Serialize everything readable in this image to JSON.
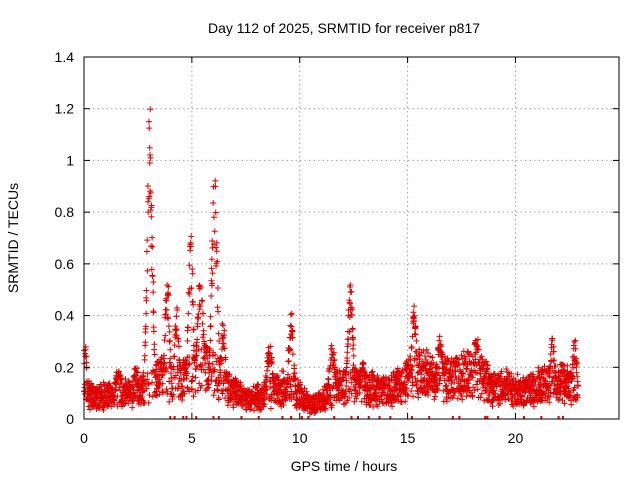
{
  "chart_data": {
    "type": "scatter",
    "title": "Day 112 of 2025, SRMTID for receiver p817",
    "xlabel": "GPS time / hours",
    "ylabel": "SRMTID / TECUs",
    "xlim": [
      0,
      24.8
    ],
    "ylim": [
      0,
      1.4
    ],
    "xticks": [
      0,
      5,
      10,
      15,
      20
    ],
    "xtick_labels": [
      "0",
      "5",
      "10",
      "15",
      "20"
    ],
    "yticks": [
      0,
      0.2,
      0.4,
      0.6,
      0.8,
      1.0,
      1.2,
      1.4
    ],
    "ytick_labels": [
      "0",
      "0.2",
      "0.4",
      "0.6",
      "0.8",
      "1",
      "1.2",
      "1.4"
    ],
    "grid": true,
    "marker": "+",
    "color": "#e00000",
    "background_level": [
      [
        0.0,
        0.12
      ],
      [
        0.5,
        0.1
      ],
      [
        1.0,
        0.1
      ],
      [
        1.5,
        0.11
      ],
      [
        2.0,
        0.11
      ],
      [
        2.5,
        0.12
      ],
      [
        3.0,
        0.14
      ],
      [
        3.5,
        0.17
      ],
      [
        4.0,
        0.17
      ],
      [
        4.5,
        0.16
      ],
      [
        5.0,
        0.2
      ],
      [
        5.5,
        0.24
      ],
      [
        6.0,
        0.2
      ],
      [
        6.5,
        0.15
      ],
      [
        7.0,
        0.12
      ],
      [
        7.5,
        0.08
      ],
      [
        8.0,
        0.09
      ],
      [
        8.5,
        0.11
      ],
      [
        9.0,
        0.13
      ],
      [
        9.5,
        0.14
      ],
      [
        10.0,
        0.1
      ],
      [
        10.5,
        0.06
      ],
      [
        11.0,
        0.08
      ],
      [
        11.5,
        0.12
      ],
      [
        12.0,
        0.14
      ],
      [
        12.5,
        0.15
      ],
      [
        13.0,
        0.13
      ],
      [
        13.5,
        0.13
      ],
      [
        14.0,
        0.12
      ],
      [
        14.5,
        0.14
      ],
      [
        15.0,
        0.17
      ],
      [
        15.5,
        0.2
      ],
      [
        16.0,
        0.19
      ],
      [
        16.5,
        0.17
      ],
      [
        17.0,
        0.17
      ],
      [
        17.5,
        0.18
      ],
      [
        18.0,
        0.2
      ],
      [
        18.5,
        0.18
      ],
      [
        19.0,
        0.13
      ],
      [
        19.5,
        0.14
      ],
      [
        20.0,
        0.12
      ],
      [
        20.5,
        0.12
      ],
      [
        21.0,
        0.14
      ],
      [
        21.5,
        0.15
      ],
      [
        22.0,
        0.16
      ],
      [
        22.5,
        0.14
      ],
      [
        22.9,
        0.13
      ]
    ],
    "peaks": [
      {
        "t": 0.05,
        "value": 0.3,
        "width": 0.08
      },
      {
        "t": 1.6,
        "value": 0.19,
        "width": 0.15
      },
      {
        "t": 2.4,
        "value": 0.2,
        "width": 0.15
      },
      {
        "t": 3.05,
        "value": 1.23,
        "width": 0.13
      },
      {
        "t": 3.85,
        "value": 0.58,
        "width": 0.12
      },
      {
        "t": 4.3,
        "value": 0.44,
        "width": 0.12
      },
      {
        "t": 4.95,
        "value": 0.74,
        "width": 0.12
      },
      {
        "t": 5.4,
        "value": 0.58,
        "width": 0.15
      },
      {
        "t": 6.05,
        "value": 0.96,
        "width": 0.14
      },
      {
        "t": 6.45,
        "value": 0.38,
        "width": 0.12
      },
      {
        "t": 8.6,
        "value": 0.3,
        "width": 0.15
      },
      {
        "t": 9.6,
        "value": 0.43,
        "width": 0.12
      },
      {
        "t": 11.5,
        "value": 0.3,
        "width": 0.15
      },
      {
        "t": 12.35,
        "value": 0.55,
        "width": 0.12
      },
      {
        "t": 12.9,
        "value": 0.22,
        "width": 0.15
      },
      {
        "t": 15.3,
        "value": 0.44,
        "width": 0.12
      },
      {
        "t": 16.5,
        "value": 0.32,
        "width": 0.15
      },
      {
        "t": 18.2,
        "value": 0.34,
        "width": 0.15
      },
      {
        "t": 21.7,
        "value": 0.33,
        "width": 0.12
      },
      {
        "t": 22.75,
        "value": 0.31,
        "width": 0.12
      }
    ],
    "zero_marks": [
      4.0,
      4.2,
      4.6,
      4.75,
      5.2,
      6.0,
      6.25,
      7.3,
      8.1,
      9.2,
      9.6,
      10.1,
      10.4,
      11.6,
      12.4,
      12.7,
      13.2,
      13.7,
      14.2,
      15.2,
      16.0,
      17.1,
      17.4,
      18.6,
      18.7,
      19.2,
      20.4,
      21.2,
      22.0,
      22.2
    ]
  }
}
